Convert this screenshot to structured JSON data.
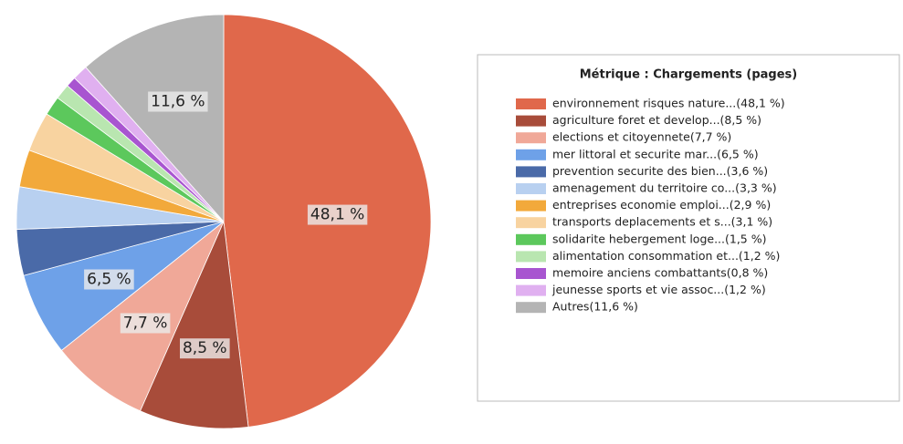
{
  "chart_data": {
    "type": "pie",
    "legend_title": "Métrique :  Chargements (pages)",
    "categories": [
      "environnement  risques nature...(48,1 %)",
      "agriculture  foret et develop...(8,5 %)",
      "elections et citoyennete(7,7 %)",
      "mer  littoral et securite mar...(6,5 %)",
      "prevention  securite des bien...(3,6 %)",
      "amenagement du territoire  co...(3,3 %)",
      "entreprises  economie  emploi...(2,9 %)",
      "transports  deplacements et s...(3,1 %)",
      "solidarite  hebergement  loge...(1,5 %)",
      "alimentation  consommation et...(1,2 %)",
      "memoire  anciens combattants(0,8 %)",
      "jeunesse  sports et vie assoc...(1,2 %)",
      "Autres(11,6 %)"
    ],
    "values": [
      48.1,
      8.5,
      7.7,
      6.5,
      3.6,
      3.3,
      2.9,
      3.1,
      1.5,
      1.2,
      0.8,
      1.2,
      11.6
    ],
    "value_labels": [
      "48,1 %",
      "8,5 %",
      "7,7 %",
      "6,5 %",
      null,
      null,
      null,
      null,
      null,
      null,
      null,
      null,
      "11,6 %"
    ],
    "colors": [
      "#e0684b",
      "#a84c3a",
      "#f0a898",
      "#6ea1e8",
      "#4a6aa8",
      "#b8d0f0",
      "#f2a93b",
      "#f8d3a0",
      "#5cc85c",
      "#b9e6b0",
      "#a855d0",
      "#e0b0f0",
      "#b4b4b4"
    ]
  }
}
